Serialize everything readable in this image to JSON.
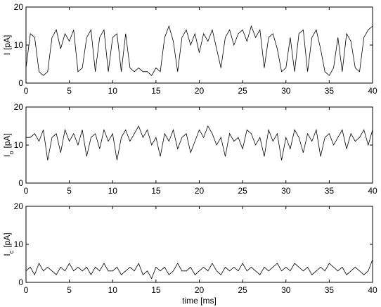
{
  "chart_data": [
    {
      "type": "line",
      "ylabel": "I",
      "ylabel_unit": "[pA]",
      "x": [
        0,
        0.5,
        1,
        1.5,
        2,
        2.5,
        3,
        3.5,
        4,
        4.5,
        5,
        5.5,
        6,
        6.5,
        7,
        7.5,
        8,
        8.5,
        9,
        9.5,
        10,
        10.5,
        11,
        11.5,
        12,
        12.5,
        13,
        13.5,
        14,
        14.5,
        15,
        15.5,
        16,
        16.5,
        17,
        17.5,
        18,
        18.5,
        19,
        19.5,
        20,
        20.5,
        21,
        21.5,
        22,
        22.5,
        23,
        23.5,
        24,
        24.5,
        25,
        25.5,
        26,
        26.5,
        27,
        27.5,
        28,
        28.5,
        29,
        29.5,
        30,
        30.5,
        31,
        31.5,
        32,
        32.5,
        33,
        33.5,
        34,
        34.5,
        35,
        35.5,
        36,
        36.5,
        37,
        37.5,
        38,
        38.5,
        39,
        39.5,
        40
      ],
      "series": [
        {
          "name": "I",
          "color": "#000000",
          "values": [
            4,
            13,
            12,
            3,
            2,
            3,
            12,
            14,
            9,
            13,
            11,
            14,
            3,
            4,
            12,
            14,
            3,
            12,
            14,
            3,
            12,
            13,
            3,
            13,
            4,
            3,
            4,
            3,
            3,
            2,
            4,
            3,
            12,
            15,
            11,
            3,
            12,
            14,
            10,
            13,
            8,
            13,
            11,
            14,
            9,
            4,
            12,
            14,
            10,
            13,
            14,
            11,
            15,
            12,
            14,
            4,
            12,
            13,
            9,
            3,
            4,
            12,
            3,
            13,
            14,
            3,
            12,
            14,
            9,
            3,
            2,
            4,
            12,
            3,
            13,
            11,
            4,
            3,
            12,
            14,
            15
          ]
        }
      ],
      "xlim": [
        0,
        40
      ],
      "xticks": [
        0,
        5,
        10,
        15,
        20,
        25,
        30,
        35,
        40
      ],
      "ylim": [
        0,
        20
      ],
      "yticks": [
        0,
        10,
        20
      ]
    },
    {
      "type": "line",
      "ylabel": "I",
      "ylabel_sub": "o",
      "ylabel_unit": "[pA]",
      "x": [
        0,
        0.5,
        1,
        1.5,
        2,
        2.5,
        3,
        3.5,
        4,
        4.5,
        5,
        5.5,
        6,
        6.5,
        7,
        7.5,
        8,
        8.5,
        9,
        9.5,
        10,
        10.5,
        11,
        11.5,
        12,
        12.5,
        13,
        13.5,
        14,
        14.5,
        15,
        15.5,
        16,
        16.5,
        17,
        17.5,
        18,
        18.5,
        19,
        19.5,
        20,
        20.5,
        21,
        21.5,
        22,
        22.5,
        23,
        23.5,
        24,
        24.5,
        25,
        25.5,
        26,
        26.5,
        27,
        27.5,
        28,
        28.5,
        29,
        29.5,
        30,
        30.5,
        31,
        31.5,
        32,
        32.5,
        33,
        33.5,
        34,
        34.5,
        35,
        35.5,
        36,
        36.5,
        37,
        37.5,
        38,
        38.5,
        39,
        39.5,
        40
      ],
      "series": [
        {
          "name": "Io",
          "color": "#000000",
          "values": [
            12,
            12,
            13,
            11,
            14,
            6,
            12,
            13,
            8,
            14,
            11,
            13,
            10,
            14,
            7,
            12,
            13,
            9,
            14,
            11,
            13,
            6,
            12,
            14,
            11,
            13,
            15,
            12,
            14,
            10,
            12,
            7,
            13,
            11,
            14,
            9,
            12,
            13,
            8,
            11,
            14,
            12,
            15,
            13,
            10,
            12,
            7,
            13,
            11,
            12,
            9,
            14,
            13,
            10,
            12,
            7,
            14,
            11,
            13,
            6,
            12,
            9,
            14,
            12,
            8,
            13,
            11,
            14,
            7,
            12,
            13,
            10,
            12,
            14,
            9,
            13,
            11,
            12,
            14,
            10,
            14
          ]
        }
      ],
      "xlim": [
        0,
        40
      ],
      "xticks": [
        0,
        5,
        10,
        15,
        20,
        25,
        30,
        35,
        40
      ],
      "ylim": [
        0,
        20
      ],
      "yticks": [
        0,
        10,
        20
      ]
    },
    {
      "type": "line",
      "ylabel": "I",
      "ylabel_sub": "c",
      "ylabel_unit": "[pA]",
      "xlabel": "time [ms]",
      "x": [
        0,
        0.5,
        1,
        1.5,
        2,
        2.5,
        3,
        3.5,
        4,
        4.5,
        5,
        5.5,
        6,
        6.5,
        7,
        7.5,
        8,
        8.5,
        9,
        9.5,
        10,
        10.5,
        11,
        11.5,
        12,
        12.5,
        13,
        13.5,
        14,
        14.5,
        15,
        15.5,
        16,
        16.5,
        17,
        17.5,
        18,
        18.5,
        19,
        19.5,
        20,
        20.5,
        21,
        21.5,
        22,
        22.5,
        23,
        23.5,
        24,
        24.5,
        25,
        25.5,
        26,
        26.5,
        27,
        27.5,
        28,
        28.5,
        29,
        29.5,
        30,
        30.5,
        31,
        31.5,
        32,
        32.5,
        33,
        33.5,
        34,
        34.5,
        35,
        35.5,
        36,
        36.5,
        37,
        37.5,
        38,
        38.5,
        39,
        39.5,
        40
      ],
      "series": [
        {
          "name": "Ic",
          "color": "#000000",
          "values": [
            3,
            4,
            2,
            5,
            3,
            4,
            3,
            2,
            4,
            3,
            5,
            3,
            4,
            3,
            4,
            2,
            4,
            3,
            5,
            3,
            3,
            4,
            2,
            3,
            4,
            3,
            5,
            2,
            3,
            1,
            4,
            3,
            4,
            2,
            3,
            5,
            3,
            3,
            4,
            2,
            3,
            4,
            3,
            5,
            3,
            2,
            4,
            3,
            4,
            3,
            5,
            3,
            4,
            3,
            2,
            4,
            3,
            4,
            5,
            3,
            4,
            3,
            5,
            4,
            3,
            4,
            2,
            3,
            4,
            3,
            5,
            4,
            3,
            4,
            2,
            3,
            4,
            3,
            2,
            3,
            6
          ]
        }
      ],
      "xlim": [
        0,
        40
      ],
      "xticks": [
        0,
        5,
        10,
        15,
        20,
        25,
        30,
        35,
        40
      ],
      "ylim": [
        0,
        20
      ],
      "yticks": [
        0,
        10,
        20
      ]
    }
  ]
}
